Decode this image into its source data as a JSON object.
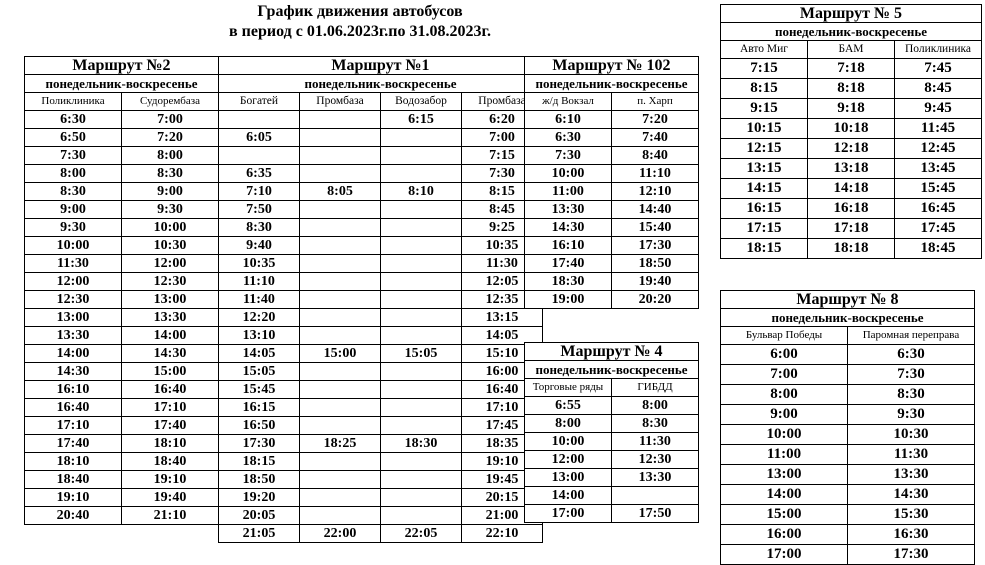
{
  "title_line1": "График движения автобусов",
  "title_line2": "в период с 01.06.2023г.по 31.08.2023г.",
  "days_label": "понедельник-воскресенье",
  "route2": {
    "name": "Маршрут №2",
    "columns": [
      "Поликлиника",
      "Судоремба​за"
    ],
    "rows": [
      [
        "6:30",
        "7:00"
      ],
      [
        "6:50",
        "7:20"
      ],
      [
        "7:30",
        "8:00"
      ],
      [
        "8:00",
        "8:30"
      ],
      [
        "8:30",
        "9:00"
      ],
      [
        "9:00",
        "9:30"
      ],
      [
        "9:30",
        "10:00"
      ],
      [
        "10:00",
        "10:30"
      ],
      [
        "11:30",
        "12:00"
      ],
      [
        "12:00",
        "12:30"
      ],
      [
        "12:30",
        "13:00"
      ],
      [
        "13:00",
        "13:30"
      ],
      [
        "13:30",
        "14:00"
      ],
      [
        "14:00",
        "14:30"
      ],
      [
        "14:30",
        "15:00"
      ],
      [
        "16:10",
        "16:40"
      ],
      [
        "16:40",
        "17:10"
      ],
      [
        "17:10",
        "17:40"
      ],
      [
        "17:40",
        "18:10"
      ],
      [
        "18:10",
        "18:40"
      ],
      [
        "18:40",
        "19:10"
      ],
      [
        "19:10",
        "19:40"
      ],
      [
        "20:40",
        "21:10"
      ]
    ]
  },
  "route1": {
    "name": "Маршрут №1",
    "columns": [
      "Богатей",
      "Промбаза",
      "Водозабор",
      "Промбаза"
    ],
    "rows": [
      [
        "",
        "",
        "6:15",
        "6:20"
      ],
      [
        "6:05",
        "",
        "",
        "7:00"
      ],
      [
        "",
        "",
        "",
        "7:15"
      ],
      [
        "6:35",
        "",
        "",
        "7:30"
      ],
      [
        "7:10",
        "8:05",
        "8:10",
        "8:15"
      ],
      [
        "7:50",
        "",
        "",
        "8:45"
      ],
      [
        "8:30",
        "",
        "",
        "9:25"
      ],
      [
        "9:40",
        "",
        "",
        "10:35"
      ],
      [
        "10:35",
        "",
        "",
        "11:30"
      ],
      [
        "11:10",
        "",
        "",
        "12:05"
      ],
      [
        "11:40",
        "",
        "",
        "12:35"
      ],
      [
        "12:20",
        "",
        "",
        "13:15"
      ],
      [
        "13:10",
        "",
        "",
        "14:05"
      ],
      [
        "14:05",
        "15:00",
        "15:05",
        "15:10"
      ],
      [
        "15:05",
        "",
        "",
        "16:00"
      ],
      [
        "15:45",
        "",
        "",
        "16:40"
      ],
      [
        "16:15",
        "",
        "",
        "17:10"
      ],
      [
        "16:50",
        "",
        "",
        "17:45"
      ],
      [
        "17:30",
        "18:25",
        "18:30",
        "18:35"
      ],
      [
        "18:15",
        "",
        "",
        "19:10"
      ],
      [
        "18:50",
        "",
        "",
        "19:45"
      ],
      [
        "19:20",
        "",
        "",
        "20:15"
      ],
      [
        "20:05",
        "",
        "",
        "21:00"
      ],
      [
        "21:05",
        "22:00",
        "22:05",
        "22:10"
      ]
    ]
  },
  "route102": {
    "name": "Маршрут № 102",
    "columns": [
      "ж/д Вокзал",
      "п. Харп"
    ],
    "rows": [
      [
        "6:10",
        "7:20"
      ],
      [
        "6:30",
        "7:40"
      ],
      [
        "7:30",
        "8:40"
      ],
      [
        "10:00",
        "11:10"
      ],
      [
        "11:00",
        "12:10"
      ],
      [
        "13:30",
        "14:40"
      ],
      [
        "14:30",
        "15:40"
      ],
      [
        "16:10",
        "17:30"
      ],
      [
        "17:40",
        "18:50"
      ],
      [
        "18:30",
        "19:40"
      ],
      [
        "19:00",
        "20:20"
      ]
    ]
  },
  "route4": {
    "name": "Маршрут № 4",
    "columns": [
      "Торговые ряды",
      "ГИБДД"
    ],
    "rows": [
      [
        "6:55",
        "8:00"
      ],
      [
        "8:00",
        "8:30"
      ],
      [
        "10:00",
        "11:30"
      ],
      [
        "12:00",
        "12:30"
      ],
      [
        "13:00",
        "13:30"
      ],
      [
        "14:00",
        ""
      ],
      [
        "17:00",
        "17:50"
      ]
    ]
  },
  "route5": {
    "name": "Маршрут № 5",
    "columns": [
      "Авто Миг",
      "БАМ",
      "Поликлиника"
    ],
    "rows": [
      [
        "7:15",
        "7:18",
        "7:45"
      ],
      [
        "8:15",
        "8:18",
        "8:45"
      ],
      [
        "9:15",
        "9:18",
        "9:45"
      ],
      [
        "10:15",
        "10:18",
        "11:45"
      ],
      [
        "12:15",
        "12:18",
        "12:45"
      ],
      [
        "13:15",
        "13:18",
        "13:45"
      ],
      [
        "14:15",
        "14:18",
        "15:45"
      ],
      [
        "16:15",
        "16:18",
        "16:45"
      ],
      [
        "17:15",
        "17:18",
        "17:45"
      ],
      [
        "18:15",
        "18:18",
        "18:45"
      ]
    ]
  },
  "route8": {
    "name": "Маршрут № 8",
    "columns": [
      "Бульвар Победы",
      "Паромная переправа"
    ],
    "rows": [
      [
        "6:00",
        "6:30"
      ],
      [
        "7:00",
        "7:30"
      ],
      [
        "8:00",
        "8:30"
      ],
      [
        "9:00",
        "9:30"
      ],
      [
        "10:00",
        "10:30"
      ],
      [
        "11:00",
        "11:30"
      ],
      [
        "13:00",
        "13:30"
      ],
      [
        "14:00",
        "14:30"
      ],
      [
        "15:00",
        "15:30"
      ],
      [
        "16:00",
        "16:30"
      ],
      [
        "17:00",
        "17:30"
      ]
    ]
  }
}
